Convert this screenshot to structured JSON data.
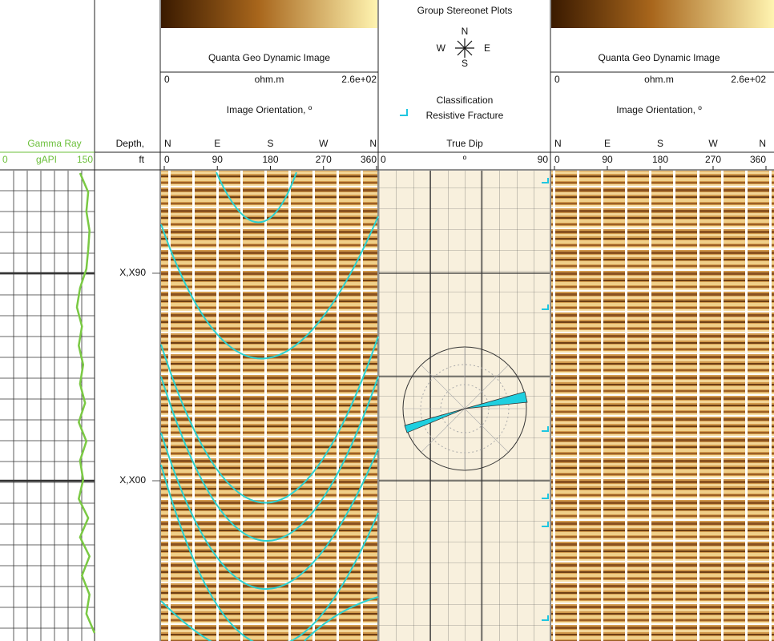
{
  "gamma": {
    "title": "Gamma Ray",
    "unit": "gAPI",
    "min": 0,
    "max": 150,
    "values": [
      127,
      140,
      137,
      142,
      140,
      137,
      127,
      122,
      130,
      125,
      132,
      127,
      135,
      125,
      137,
      127,
      132,
      125,
      140,
      127,
      142,
      130,
      142,
      137,
      150
    ]
  },
  "depth": {
    "title": "Depth,",
    "unit": "ft",
    "labels": [
      "X,X90",
      "X,X00"
    ]
  },
  "image_tracks": [
    {
      "color_bar": true,
      "title": "Quanta Geo Dynamic Image",
      "min": 0,
      "unit": "ohm.m",
      "max": "2.6e+02",
      "orientation_title": "Image Orientation, º",
      "directions": [
        "N",
        "E",
        "S",
        "W",
        "N"
      ],
      "degrees": [
        0,
        90,
        180,
        270,
        360
      ]
    },
    {
      "color_bar": true,
      "title": "Quanta Geo Dynamic Image",
      "min": 0,
      "unit": "ohm.m",
      "max": "2.6e+02",
      "orientation_title": "Image Orientation, º",
      "directions": [
        "N",
        "E",
        "S",
        "W",
        "N"
      ],
      "degrees": [
        0,
        90,
        180,
        270,
        360
      ]
    }
  ],
  "dip_track": {
    "title": "Group Stereonet Plots",
    "north": "N",
    "west": "W",
    "east": "E",
    "south": "S",
    "classification_title": "Classification",
    "classification": "Resistive Fracture",
    "dip_title": "True Dip",
    "dip_min": 0,
    "dip_unit": "º",
    "dip_max": 90
  }
}
